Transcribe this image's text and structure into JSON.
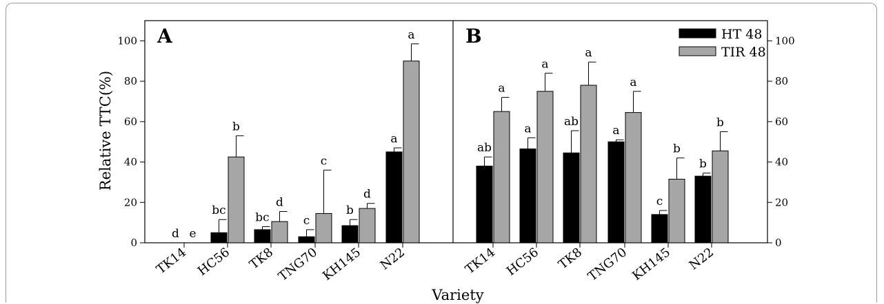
{
  "chart_data": {
    "type": "bar",
    "xlabel": "Variety",
    "ylabel": "Relative TTC(%)",
    "ylim": [
      0,
      110
    ],
    "yticks": [
      0,
      20,
      40,
      60,
      80,
      100
    ],
    "categories": [
      "TK14",
      "HC56",
      "TK8",
      "TNG70",
      "KH145",
      "N22"
    ],
    "legend": {
      "placement": "top-right of panel B",
      "entries": [
        "HT 48",
        "TIR 48"
      ]
    },
    "series_colors": {
      "HT 48": "#000000",
      "TIR 48": "#a6a6a6"
    },
    "panels": [
      {
        "label": "A",
        "y_axis_side": "left",
        "series": [
          {
            "name": "HT 48",
            "values": [
              0,
              5,
              6.5,
              3,
              8.5,
              45
            ],
            "errors": [
              0,
              6.5,
              1.5,
              3.5,
              3,
              2
            ],
            "letters": [
              "d",
              "bc",
              "bc",
              "c",
              "b",
              "a"
            ]
          },
          {
            "name": "TIR 48",
            "values": [
              0,
              42.5,
              10.5,
              14.5,
              17,
              90
            ],
            "errors": [
              0,
              10.5,
              5,
              21.5,
              2.5,
              8.5
            ],
            "letters": [
              "e",
              "b",
              "d",
              "c",
              "d",
              "a"
            ]
          }
        ]
      },
      {
        "label": "B",
        "y_axis_side": "right",
        "series": [
          {
            "name": "HT 48",
            "values": [
              38,
              46.5,
              44.5,
              50,
              14,
              33
            ],
            "errors": [
              4.5,
              5.5,
              11,
              1,
              2,
              1.5
            ],
            "letters": [
              "ab",
              "a",
              "ab",
              "a",
              "c",
              "b"
            ]
          },
          {
            "name": "TIR 48",
            "values": [
              65,
              75,
              78,
              64.5,
              31.5,
              45.5
            ],
            "errors": [
              7,
              9,
              11.5,
              10.5,
              10.5,
              9.5
            ],
            "letters": [
              "a",
              "a",
              "a",
              "a",
              "b",
              "b"
            ]
          }
        ]
      }
    ]
  }
}
